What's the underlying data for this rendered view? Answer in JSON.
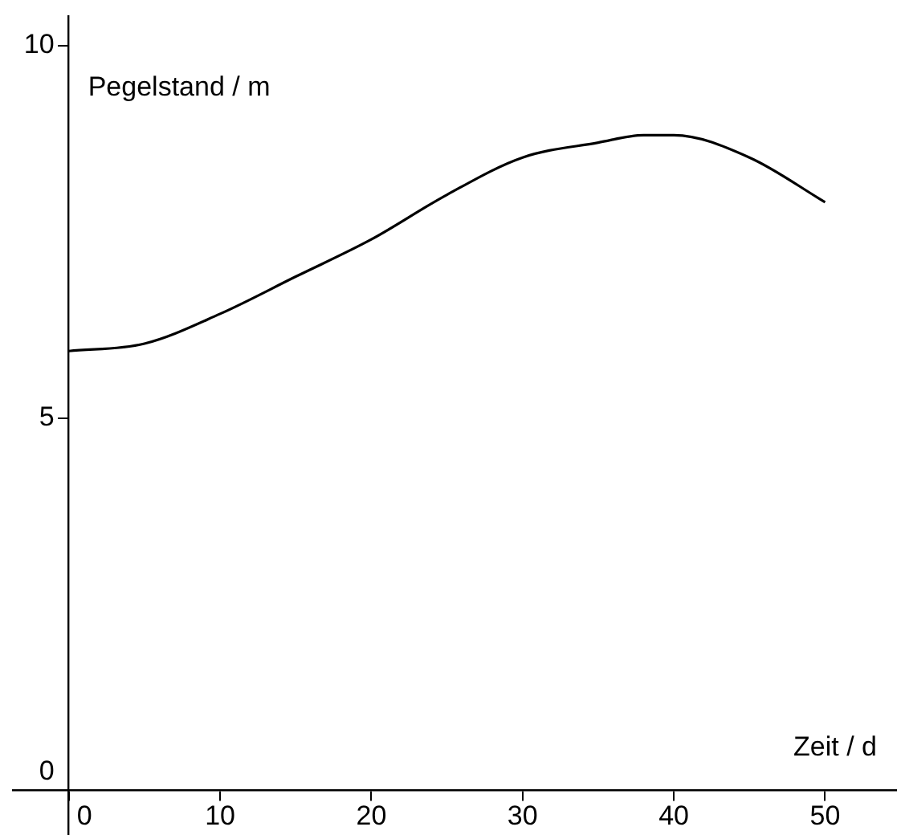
{
  "chart_data": {
    "type": "line",
    "xlabel": "Zeit / d",
    "ylabel": "Pegelstand / m",
    "x": [
      0,
      5,
      10,
      15,
      20,
      25,
      30,
      35,
      38,
      40,
      45,
      50
    ],
    "series": [
      {
        "color": "#000000",
        "values": [
          5.9,
          6.0,
          6.4,
          6.9,
          7.4,
          8.0,
          8.5,
          8.7,
          8.8,
          8.8,
          8.5,
          7.9
        ]
      }
    ],
    "xlim": [
      -3.7,
      54.7
    ],
    "ylim": [
      -0.6,
      10.4
    ],
    "xticks": [
      0,
      10,
      20,
      30,
      40,
      50
    ],
    "yticks": [
      0,
      5,
      10
    ],
    "grid": false,
    "legend": false,
    "marker": "none",
    "line_style": "solid"
  }
}
